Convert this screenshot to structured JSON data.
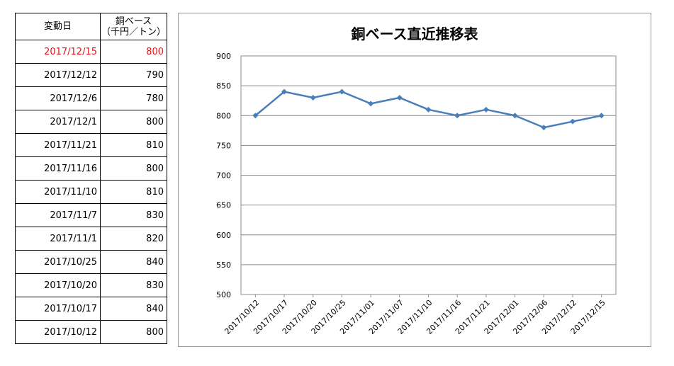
{
  "table": {
    "header": {
      "date_label": "変動日",
      "value_label_1": "銅ベース",
      "value_label_2": "（千円／トン）"
    },
    "highlight_color": "#e0141a",
    "rows": [
      {
        "date": "2017/12/15",
        "value": "800"
      },
      {
        "date": "2017/12/12",
        "value": "790"
      },
      {
        "date": "2017/12/6",
        "value": "780"
      },
      {
        "date": "2017/12/1",
        "value": "800"
      },
      {
        "date": "2017/11/21",
        "value": "810"
      },
      {
        "date": "2017/11/16",
        "value": "800"
      },
      {
        "date": "2017/11/10",
        "value": "810"
      },
      {
        "date": "2017/11/7",
        "value": "830"
      },
      {
        "date": "2017/11/1",
        "value": "820"
      },
      {
        "date": "2017/10/25",
        "value": "840"
      },
      {
        "date": "2017/10/20",
        "value": "830"
      },
      {
        "date": "2017/10/17",
        "value": "840"
      },
      {
        "date": "2017/10/12",
        "value": "800"
      }
    ]
  },
  "chart_data": {
    "type": "line",
    "title": "銅ベース直近推移表",
    "categories": [
      "2017/10/12",
      "2017/10/17",
      "2017/10/20",
      "2017/10/25",
      "2017/11/01",
      "2017/11/07",
      "2017/11/10",
      "2017/11/16",
      "2017/11/21",
      "2017/12/01",
      "2017/12/06",
      "2017/12/12",
      "2017/12/15"
    ],
    "series": [
      {
        "values": [
          800,
          840,
          830,
          840,
          820,
          830,
          810,
          800,
          810,
          800,
          780,
          790,
          800
        ]
      }
    ],
    "ylim": [
      500,
      900
    ],
    "yticks": [
      500,
      550,
      600,
      650,
      700,
      750,
      800,
      850,
      900
    ],
    "ytick_labels": [
      "500",
      "550",
      "600",
      "650",
      "700",
      "750",
      "800",
      "850",
      "900"
    ],
    "grid": true,
    "line_color": "#4a7ebb",
    "marker": "diamond"
  }
}
